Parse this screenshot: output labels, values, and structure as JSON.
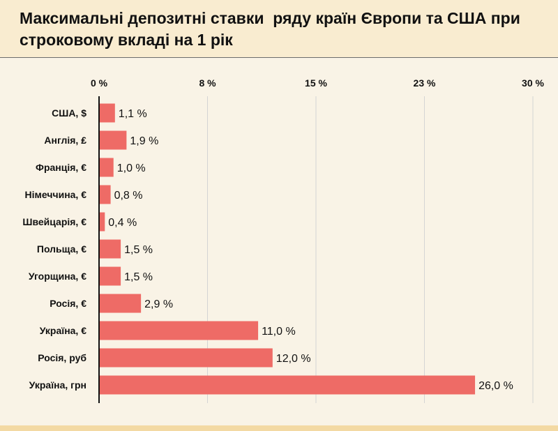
{
  "chart_data": {
    "type": "bar",
    "orientation": "horizontal",
    "title": "Максимальні депозитні ставки  ряду країн Європи та США при строковому вкладі на 1 рік",
    "categories": [
      "США, $",
      "Англія, ₤",
      "Франція, €",
      "Німеччина, €",
      "Швейцарія, €",
      "Польща, €",
      "Угорщина, €",
      "Росія, €",
      "Україна, €",
      "Росія, руб",
      "Україна, грн"
    ],
    "values": [
      1.1,
      1.9,
      1.0,
      0.8,
      0.4,
      1.5,
      1.5,
      2.9,
      11.0,
      12.0,
      26.0
    ],
    "value_labels": [
      "1,1 %",
      "1,9 %",
      "1,0 %",
      "0,8 %",
      "0,4 %",
      "1,5 %",
      "1,5 %",
      "2,9 %",
      "11,0 %",
      "12,0 %",
      "26,0 %"
    ],
    "x_ticks": [
      0,
      7.5,
      15,
      22.5,
      30
    ],
    "x_tick_labels": [
      "0 %",
      "8 %",
      "15 %",
      "23 %",
      "30 %"
    ],
    "xlim": [
      0,
      30
    ],
    "xlabel": "",
    "ylabel": "",
    "grid": true,
    "axis_position": "top",
    "colors": {
      "bar": "#ee6b66",
      "grid": "#d4d4d4",
      "axis": "#111111",
      "text": "#111111",
      "background": "#f9f3e6",
      "header": "#f9ecd0",
      "accent_bar": "#f3d9a3"
    }
  }
}
